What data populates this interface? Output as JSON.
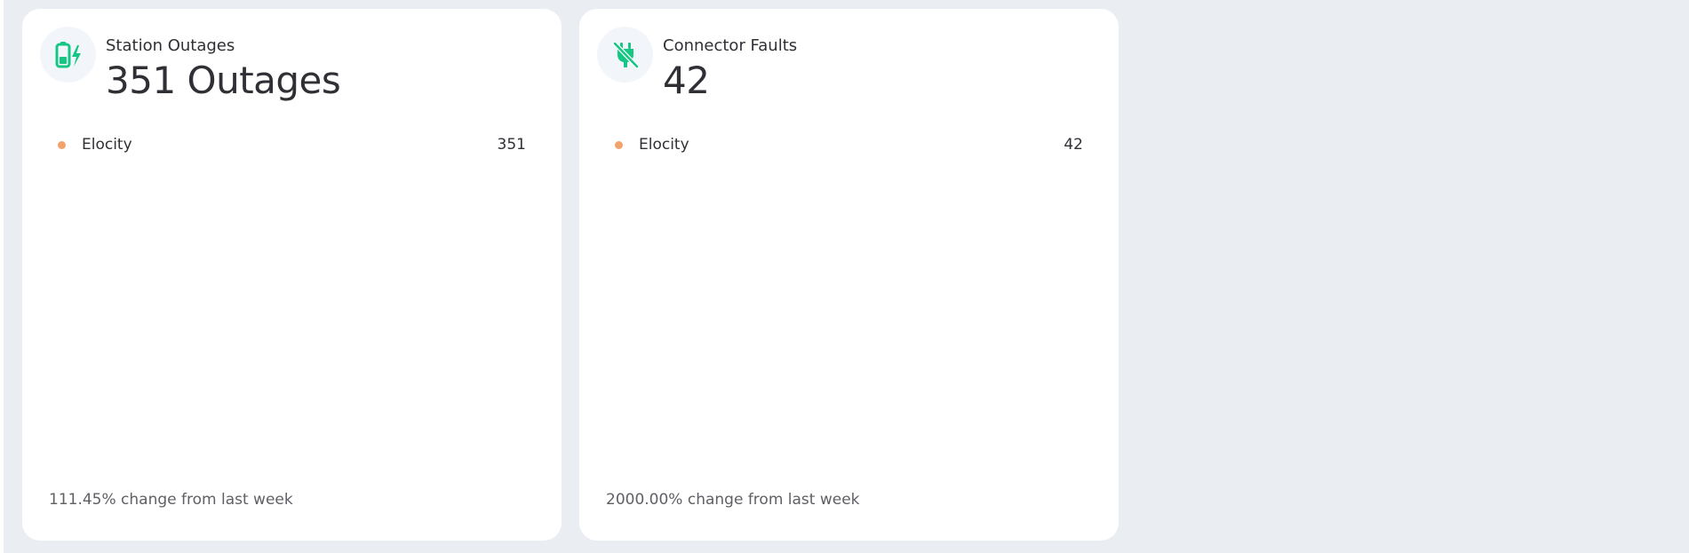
{
  "accent_color": "#16c784",
  "legend_dot_color": "#f4a26b",
  "cards": [
    {
      "icon": "battery-charging-icon",
      "label": "Station Outages",
      "value": "351 Outages",
      "legend": [
        {
          "name": "Elocity",
          "count": "351"
        }
      ],
      "change": "111.45% change from last week"
    },
    {
      "icon": "plug-off-icon",
      "label": "Connector Faults",
      "value": "42",
      "legend": [
        {
          "name": "Elocity",
          "count": "42"
        }
      ],
      "change": "2000.00% change from last week"
    }
  ]
}
